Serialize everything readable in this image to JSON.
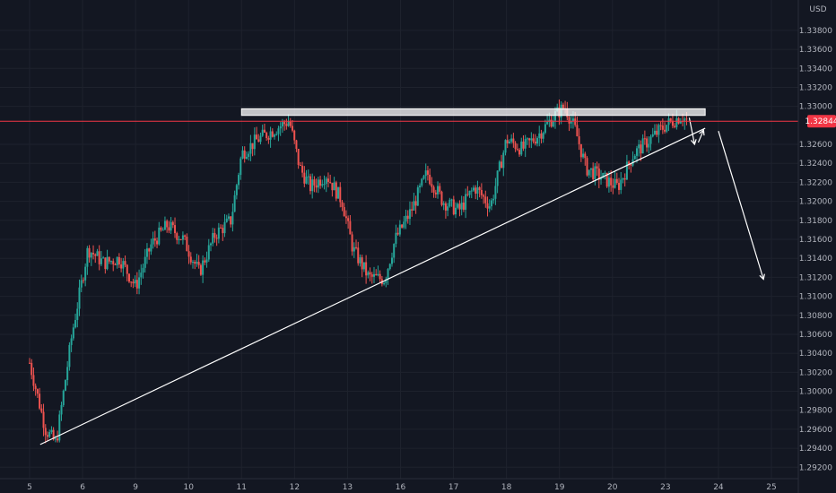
{
  "chart_data": {
    "type": "candlestick",
    "currency_label": "USD",
    "current_price": "1.32844",
    "colors": {
      "background": "#131722",
      "up": "#26a69a",
      "down": "#ef5350",
      "current_line": "#f23645",
      "annotation": "#ffffff",
      "grid": "#1e222d"
    },
    "ylim": [
      1.2908,
      1.3412
    ],
    "y_ticks": [
      "1.33800",
      "1.33600",
      "1.33400",
      "1.33200",
      "1.33000",
      "1.32600",
      "1.32400",
      "1.32200",
      "1.32000",
      "1.31800",
      "1.31600",
      "1.31400",
      "1.31200",
      "1.31000",
      "1.30800",
      "1.30600",
      "1.30400",
      "1.30200",
      "1.30000",
      "1.29800",
      "1.29600",
      "1.29400",
      "1.29200"
    ],
    "x_ticks": [
      "5",
      "6",
      "9",
      "10",
      "11",
      "12",
      "13",
      "16",
      "17",
      "18",
      "19",
      "20",
      "23",
      "24",
      "25"
    ],
    "xlim": [
      0,
      15
    ],
    "price_path": [
      [
        0.0,
        1.303
      ],
      [
        0.3,
        1.296
      ],
      [
        0.5,
        1.2945
      ],
      [
        0.8,
        1.306
      ],
      [
        1.1,
        1.315
      ],
      [
        1.4,
        1.3135
      ],
      [
        1.7,
        1.314
      ],
      [
        2.0,
        1.311
      ],
      [
        2.3,
        1.3155
      ],
      [
        2.6,
        1.3175
      ],
      [
        2.9,
        1.316
      ],
      [
        3.2,
        1.3125
      ],
      [
        3.5,
        1.3165
      ],
      [
        3.8,
        1.318
      ],
      [
        4.0,
        1.325
      ],
      [
        4.3,
        1.3265
      ],
      [
        4.6,
        1.3275
      ],
      [
        4.9,
        1.3285
      ],
      [
        5.1,
        1.3235
      ],
      [
        5.3,
        1.3215
      ],
      [
        5.6,
        1.3228
      ],
      [
        5.9,
        1.32
      ],
      [
        6.1,
        1.315
      ],
      [
        6.4,
        1.312
      ],
      [
        6.7,
        1.3118
      ],
      [
        6.9,
        1.316
      ],
      [
        7.2,
        1.319
      ],
      [
        7.5,
        1.323
      ],
      [
        7.8,
        1.32
      ],
      [
        8.1,
        1.319
      ],
      [
        8.4,
        1.3215
      ],
      [
        8.7,
        1.3195
      ],
      [
        9.0,
        1.3265
      ],
      [
        9.3,
        1.3255
      ],
      [
        9.6,
        1.327
      ],
      [
        9.9,
        1.329
      ],
      [
        10.1,
        1.33
      ],
      [
        10.3,
        1.3275
      ],
      [
        10.5,
        1.3235
      ],
      [
        10.8,
        1.3225
      ],
      [
        11.1,
        1.3215
      ],
      [
        11.4,
        1.325
      ],
      [
        11.7,
        1.3265
      ],
      [
        12.0,
        1.328
      ],
      [
        12.3,
        1.329
      ],
      [
        12.4,
        1.3285
      ]
    ],
    "resistance_zone": {
      "x1": 4.0,
      "x2": 12.75,
      "y1": 1.32975,
      "y2": 1.32905
    },
    "trendline": {
      "x1": 0.2,
      "y1": 1.2944,
      "x2": 12.75,
      "y2": 1.3277
    },
    "arrows": [
      {
        "x1": 12.45,
        "y1": 1.3288,
        "x2": 12.55,
        "y2": 1.326
      },
      {
        "x1": 12.62,
        "y1": 1.3262,
        "x2": 12.72,
        "y2": 1.3275
      },
      {
        "x1": 13.0,
        "y1": 1.3274,
        "x2": 13.85,
        "y2": 1.3118
      }
    ]
  }
}
